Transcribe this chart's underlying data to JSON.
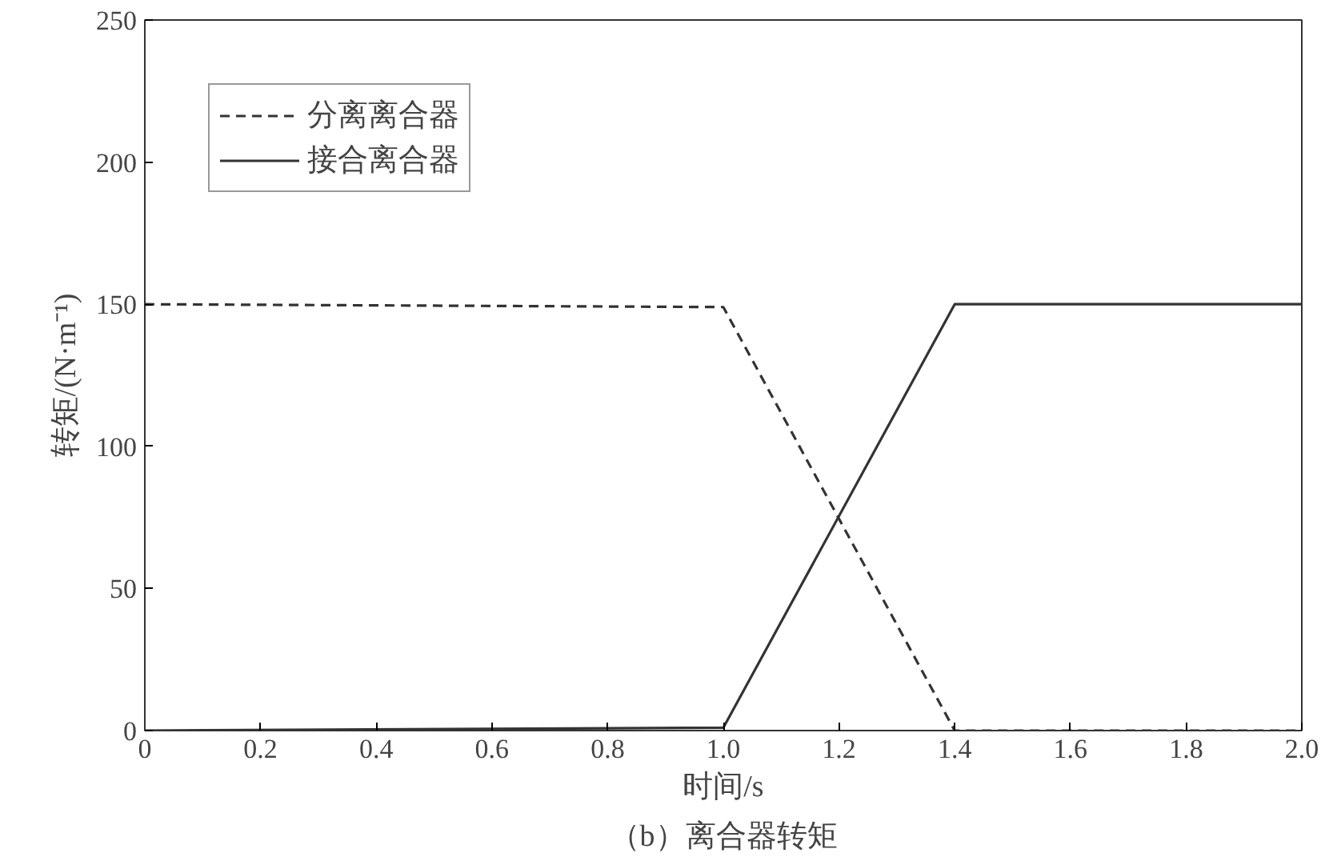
{
  "chart_data": {
    "type": "line",
    "title": "（b）离合器转矩",
    "xlabel": "时间/s",
    "ylabel": "转矩/(N·m⁻¹)",
    "xlim": [
      0,
      2.0
    ],
    "ylim": [
      0,
      250
    ],
    "xticks": [
      0,
      {
        "value": 0.2,
        "label": "0.2"
      },
      {
        "value": 0.4,
        "label": "0.4"
      },
      {
        "value": 0.6,
        "label": "0.6"
      },
      {
        "value": 0.8,
        "label": "0.8"
      },
      {
        "value": 1.0,
        "label": "1.0"
      },
      {
        "value": 1.2,
        "label": "1.2"
      },
      {
        "value": 1.4,
        "label": "1.4"
      },
      {
        "value": 1.6,
        "label": "1.6"
      },
      {
        "value": 1.8,
        "label": "1.8"
      },
      {
        "value": 2.0,
        "label": "2.0"
      }
    ],
    "yticks": [
      0,
      50,
      100,
      150,
      200,
      250
    ],
    "grid": false,
    "legend": "top left",
    "marker": "none",
    "series": [
      {
        "name": "分离离合器",
        "color": "#333333",
        "line_style": "dashed",
        "x": [
          0,
          1.0,
          1.4,
          2.0
        ],
        "values": [
          150,
          149,
          0,
          0
        ]
      },
      {
        "name": "接合离合器",
        "color": "#333333",
        "line_style": "solid",
        "x": [
          0,
          1.0,
          1.4,
          2.0
        ],
        "values": [
          0,
          1,
          150,
          150
        ]
      }
    ]
  }
}
